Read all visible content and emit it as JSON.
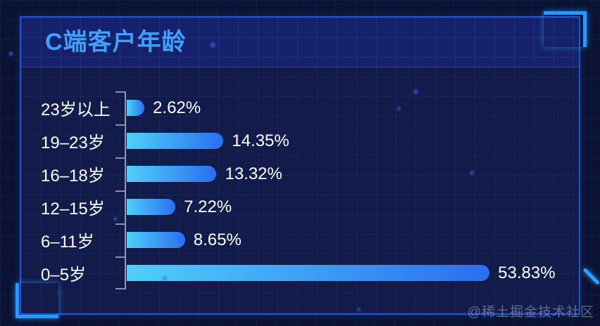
{
  "panel": {
    "title": "C端客户年龄"
  },
  "watermark": "@稀土掘金技术社区",
  "colors": {
    "accent_corner": "#269bff",
    "frame_border": "#2454cc",
    "title_text": "#41a0ff",
    "bar_gradient_start": "#4fd0f8",
    "bar_gradient_end": "#2b6ef0",
    "panel_body_bg": "#131b4b",
    "panel_header_bg": "#16216b",
    "outer_bg": "#0c1233"
  },
  "chart_data": {
    "type": "bar",
    "orientation": "horizontal",
    "title": "C端客户年龄",
    "categories": [
      "23岁以上",
      "19–23岁",
      "16–18岁",
      "12–15岁",
      "6–11岁",
      "0–5岁"
    ],
    "values": [
      2.62,
      14.35,
      13.32,
      7.22,
      8.65,
      53.83
    ],
    "value_labels": [
      "2.62%",
      "14.35%",
      "13.32%",
      "7.22%",
      "8.65%",
      "53.83%"
    ],
    "unit": "%",
    "xlabel": "",
    "ylabel": "",
    "xlim": [
      0,
      60
    ],
    "grid": "off",
    "legend": "none",
    "axis_color": "rgba(255,255,255,0.55)",
    "bar_gradient": [
      "#4fd0f8",
      "#2b6ef0"
    ]
  }
}
